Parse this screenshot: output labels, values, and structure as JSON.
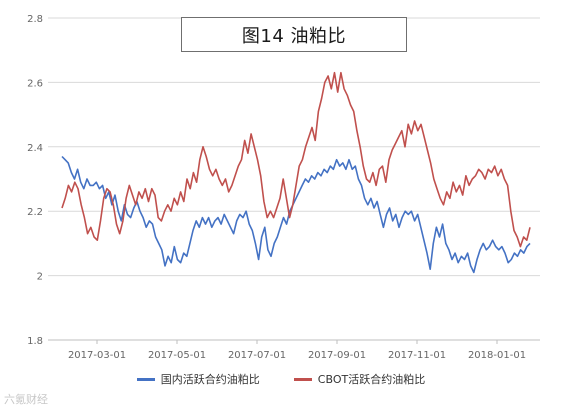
{
  "chart_data": {
    "type": "line",
    "title": "图14 油粕比",
    "ylim": [
      1.8,
      2.8
    ],
    "yticks": [
      "1.8",
      "2",
      "2.2",
      "2.4",
      "2.6",
      "2.8"
    ],
    "x_tick_labels": [
      "2017-03-01",
      "2017-05-01",
      "2017-07-01",
      "2017-09-01",
      "2017-11-01",
      "2018-01-01"
    ],
    "grid": "horizontal",
    "legend_position": "bottom",
    "series": [
      {
        "name": "国内活跃合约油粕比",
        "color": "#4472c4",
        "values": [
          2.37,
          2.36,
          2.35,
          2.32,
          2.3,
          2.33,
          2.29,
          2.27,
          2.3,
          2.28,
          2.28,
          2.29,
          2.27,
          2.28,
          2.24,
          2.26,
          2.22,
          2.25,
          2.2,
          2.17,
          2.22,
          2.19,
          2.18,
          2.21,
          2.23,
          2.2,
          2.18,
          2.15,
          2.17,
          2.16,
          2.12,
          2.1,
          2.08,
          2.03,
          2.06,
          2.04,
          2.09,
          2.05,
          2.04,
          2.07,
          2.06,
          2.1,
          2.14,
          2.17,
          2.15,
          2.18,
          2.16,
          2.18,
          2.15,
          2.17,
          2.18,
          2.16,
          2.19,
          2.17,
          2.15,
          2.13,
          2.17,
          2.19,
          2.18,
          2.2,
          2.16,
          2.14,
          2.1,
          2.05,
          2.12,
          2.15,
          2.08,
          2.06,
          2.1,
          2.12,
          2.15,
          2.18,
          2.16,
          2.2,
          2.22,
          2.24,
          2.26,
          2.28,
          2.3,
          2.29,
          2.31,
          2.3,
          2.32,
          2.31,
          2.33,
          2.32,
          2.34,
          2.33,
          2.36,
          2.34,
          2.35,
          2.33,
          2.36,
          2.33,
          2.34,
          2.3,
          2.28,
          2.24,
          2.22,
          2.24,
          2.21,
          2.23,
          2.19,
          2.15,
          2.19,
          2.21,
          2.17,
          2.19,
          2.15,
          2.18,
          2.2,
          2.19,
          2.2,
          2.17,
          2.19,
          2.15,
          2.11,
          2.07,
          2.02,
          2.1,
          2.15,
          2.12,
          2.16,
          2.1,
          2.08,
          2.05,
          2.07,
          2.04,
          2.06,
          2.05,
          2.07,
          2.03,
          2.01,
          2.05,
          2.08,
          2.1,
          2.08,
          2.09,
          2.11,
          2.09,
          2.08,
          2.09,
          2.07,
          2.04,
          2.05,
          2.07,
          2.06,
          2.08,
          2.07,
          2.09,
          2.1
        ]
      },
      {
        "name": "CBOT活跃合约油粕比",
        "color": "#c0504d",
        "values": [
          2.21,
          2.24,
          2.28,
          2.26,
          2.29,
          2.27,
          2.22,
          2.18,
          2.13,
          2.15,
          2.12,
          2.11,
          2.17,
          2.24,
          2.27,
          2.26,
          2.22,
          2.16,
          2.13,
          2.17,
          2.24,
          2.28,
          2.25,
          2.22,
          2.26,
          2.24,
          2.27,
          2.23,
          2.27,
          2.25,
          2.18,
          2.17,
          2.2,
          2.22,
          2.2,
          2.24,
          2.22,
          2.26,
          2.23,
          2.3,
          2.27,
          2.32,
          2.29,
          2.36,
          2.4,
          2.37,
          2.33,
          2.31,
          2.33,
          2.3,
          2.28,
          2.3,
          2.26,
          2.28,
          2.31,
          2.34,
          2.36,
          2.42,
          2.38,
          2.44,
          2.4,
          2.36,
          2.31,
          2.23,
          2.18,
          2.2,
          2.18,
          2.21,
          2.24,
          2.3,
          2.24,
          2.18,
          2.22,
          2.28,
          2.34,
          2.36,
          2.4,
          2.43,
          2.46,
          2.42,
          2.51,
          2.55,
          2.6,
          2.62,
          2.58,
          2.63,
          2.57,
          2.63,
          2.58,
          2.56,
          2.53,
          2.51,
          2.45,
          2.4,
          2.34,
          2.3,
          2.29,
          2.32,
          2.28,
          2.33,
          2.34,
          2.29,
          2.36,
          2.39,
          2.41,
          2.43,
          2.45,
          2.4,
          2.47,
          2.44,
          2.48,
          2.45,
          2.47,
          2.43,
          2.39,
          2.35,
          2.3,
          2.27,
          2.24,
          2.22,
          2.26,
          2.24,
          2.29,
          2.26,
          2.28,
          2.25,
          2.31,
          2.28,
          2.3,
          2.31,
          2.33,
          2.32,
          2.3,
          2.33,
          2.32,
          2.34,
          2.31,
          2.33,
          2.3,
          2.28,
          2.2,
          2.14,
          2.12,
          2.09,
          2.12,
          2.11,
          2.15
        ]
      }
    ]
  },
  "watermark": "六氪财经"
}
